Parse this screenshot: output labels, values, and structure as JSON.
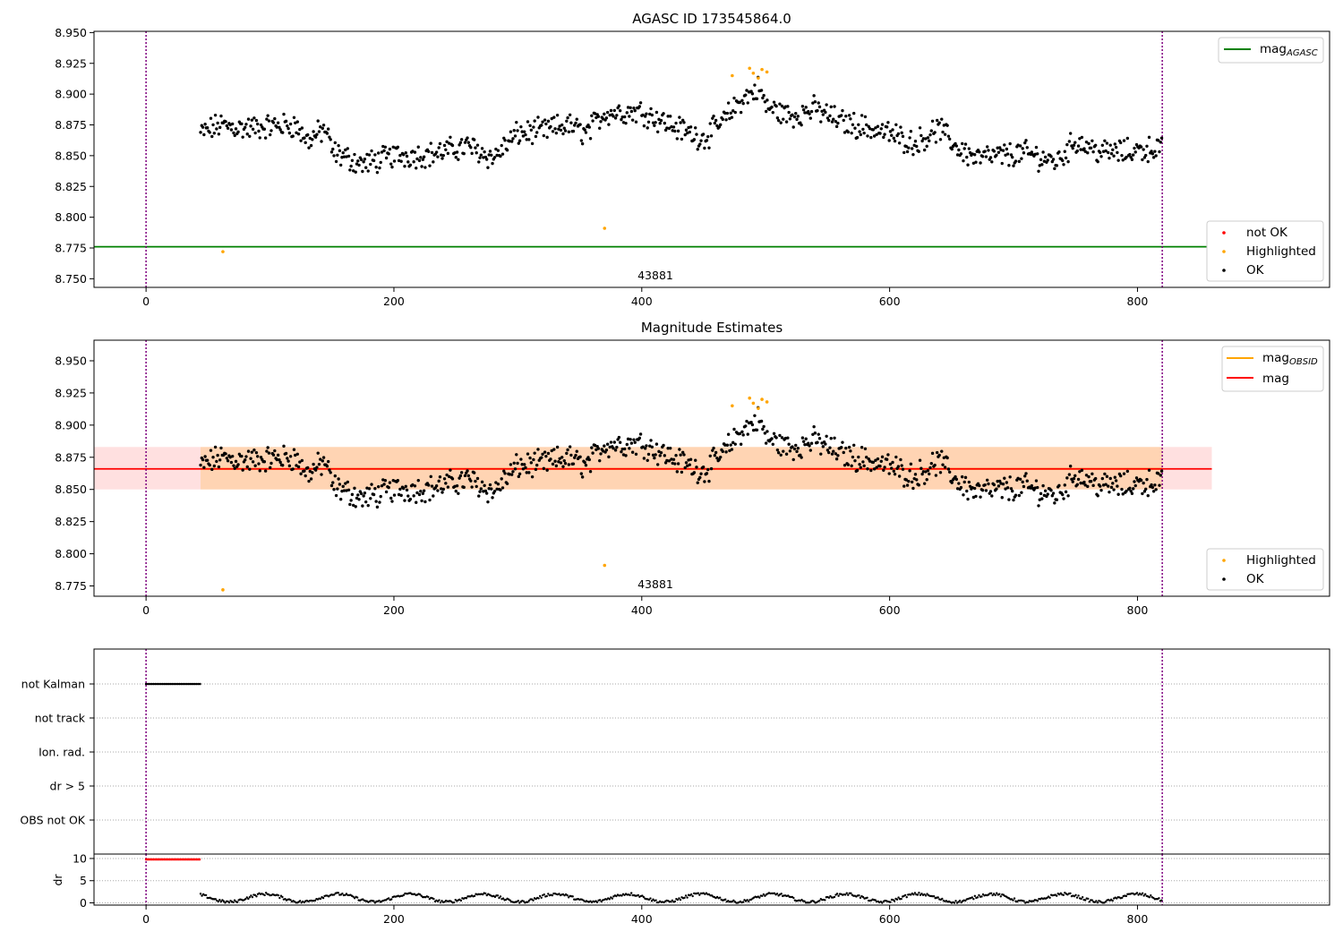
{
  "chart_data": [
    {
      "type": "scatter",
      "title": "AGASC ID 173545864.0",
      "xlim": [
        -42,
        955
      ],
      "ylim": [
        8.743,
        8.951
      ],
      "xticks": [
        "0",
        "200",
        "400",
        "600",
        "800"
      ],
      "yticks": [
        "8.750",
        "8.775",
        "8.800",
        "8.825",
        "8.850",
        "8.875",
        "8.900",
        "8.925",
        "8.950"
      ],
      "obsid_label": "43881",
      "obs_boundaries": [
        0,
        820
      ],
      "agasc_mag": 8.776,
      "legend_lines": [
        {
          "name": "mag",
          "sub": "AGASC",
          "color": "#008000"
        }
      ],
      "legend_markers": [
        {
          "name": "not OK",
          "color": "#ff0000"
        },
        {
          "name": "Highlighted",
          "color": "#ffa500"
        },
        {
          "name": "OK",
          "color": "#000000"
        }
      ],
      "highlighted": [
        [
          62,
          8.772
        ],
        [
          370,
          8.791
        ],
        [
          473,
          8.915
        ],
        [
          487,
          8.921
        ],
        [
          490,
          8.917
        ],
        [
          494,
          8.913
        ],
        [
          497,
          8.92
        ],
        [
          501,
          8.918
        ]
      ],
      "series_profile": [
        [
          44,
          8.868
        ],
        [
          60,
          8.875
        ],
        [
          80,
          8.872
        ],
        [
          100,
          8.874
        ],
        [
          120,
          8.875
        ],
        [
          130,
          8.862
        ],
        [
          145,
          8.872
        ],
        [
          150,
          8.853
        ],
        [
          175,
          8.843
        ],
        [
          200,
          8.85
        ],
        [
          230,
          8.851
        ],
        [
          260,
          8.858
        ],
        [
          280,
          8.848
        ],
        [
          300,
          8.868
        ],
        [
          320,
          8.87
        ],
        [
          340,
          8.875
        ],
        [
          355,
          8.868
        ],
        [
          370,
          8.885
        ],
        [
          400,
          8.886
        ],
        [
          430,
          8.872
        ],
        [
          450,
          8.864
        ],
        [
          465,
          8.877
        ],
        [
          480,
          8.895
        ],
        [
          495,
          8.905
        ],
        [
          500,
          8.89
        ],
        [
          520,
          8.882
        ],
        [
          540,
          8.888
        ],
        [
          560,
          8.878
        ],
        [
          580,
          8.873
        ],
        [
          600,
          8.868
        ],
        [
          620,
          8.86
        ],
        [
          640,
          8.872
        ],
        [
          655,
          8.856
        ],
        [
          670,
          8.848
        ],
        [
          690,
          8.85
        ],
        [
          710,
          8.852
        ],
        [
          735,
          8.845
        ],
        [
          750,
          8.862
        ],
        [
          770,
          8.853
        ],
        [
          790,
          8.853
        ],
        [
          820,
          8.857
        ]
      ]
    },
    {
      "type": "scatter",
      "title": "Magnitude Estimates",
      "xlim": [
        -42,
        955
      ],
      "ylim": [
        8.767,
        8.966
      ],
      "xticks": [
        "0",
        "200",
        "400",
        "600",
        "800"
      ],
      "yticks": [
        "8.775",
        "8.800",
        "8.825",
        "8.850",
        "8.875",
        "8.900",
        "8.925",
        "8.950"
      ],
      "obsid_label": "43881",
      "obs_boundaries": [
        0,
        820
      ],
      "obsid_mag": 8.866,
      "obsid_mag_band": [
        8.85,
        8.883
      ],
      "overall_mag": 8.866,
      "overall_mag_band": [
        8.85,
        8.883
      ],
      "legend_lines": [
        {
          "name": "mag",
          "sub": "OBSID",
          "color": "#ffa500"
        },
        {
          "name": "mag",
          "sub": "",
          "color": "#ff0000"
        }
      ],
      "legend_markers": [
        {
          "name": "Highlighted",
          "color": "#ffa500"
        },
        {
          "name": "OK",
          "color": "#000000"
        }
      ]
    },
    {
      "type": "scatter",
      "title": "",
      "categories": [
        "not Kalman",
        "not track",
        "Ion. rad.",
        "dr > 5",
        "OBS not OK"
      ],
      "not_kalman_range": [
        0,
        44
      ],
      "xlim": [
        -42,
        955
      ],
      "obs_boundaries": [
        0,
        820
      ]
    },
    {
      "type": "scatter",
      "ylabel": "dr",
      "ylim": [
        -0.5,
        11
      ],
      "yticks": [
        "0",
        "5",
        "10"
      ],
      "xticks": [
        "0",
        "200",
        "400",
        "600",
        "800"
      ],
      "xlim": [
        -42,
        955
      ],
      "saturated_range": [
        0,
        44
      ],
      "saturated_value": 9.8,
      "obs_boundaries": [
        0,
        820
      ]
    }
  ]
}
